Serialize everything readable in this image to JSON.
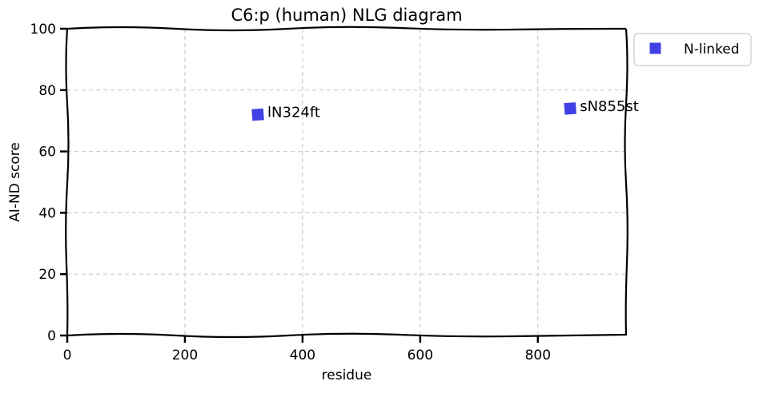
{
  "chart_data": {
    "type": "scatter",
    "title": "C6:p (human) NLG diagram",
    "xlabel": "residue",
    "ylabel": "AI-ND score",
    "xlim": [
      0,
      950
    ],
    "ylim": [
      0,
      100
    ],
    "xticks": [
      0,
      200,
      400,
      600,
      800
    ],
    "yticks": [
      0,
      20,
      40,
      60,
      80,
      100
    ],
    "grid": true,
    "legend_position": "outside top-right",
    "series": [
      {
        "name": "N-linked",
        "color": "#1f1fe0",
        "marker": "square",
        "points": [
          {
            "x": 324,
            "y": 72,
            "label": "lN324ft"
          },
          {
            "x": 855,
            "y": 74,
            "label": "sN855st"
          }
        ]
      }
    ]
  }
}
